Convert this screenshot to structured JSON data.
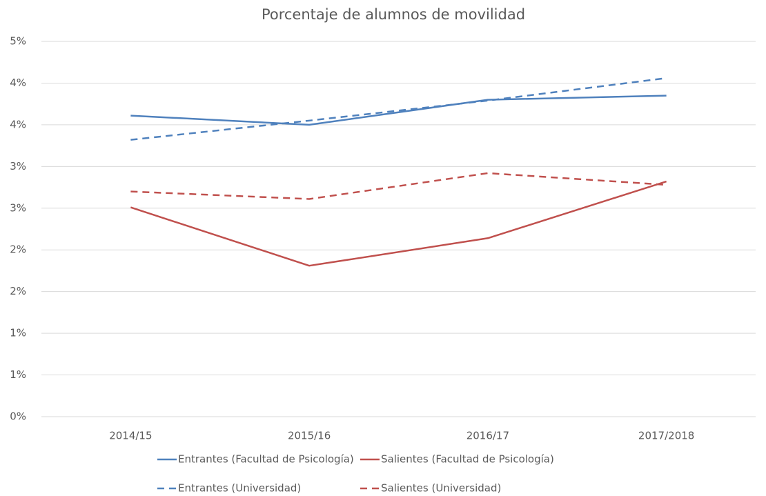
{
  "chart_data": {
    "type": "line",
    "title": "Porcentaje de alumnos de movilidad",
    "categories": [
      "2014/15",
      "2015/16",
      "2016/17",
      "2017/2018"
    ],
    "series": [
      {
        "name": "Entrantes (Facultad de Psicología)",
        "color": "#4f81bd",
        "dashed": false,
        "values": [
          3.61,
          3.5,
          3.8,
          3.85
        ]
      },
      {
        "name": "Salientes (Facultad de Psicología)",
        "color": "#c0504d",
        "dashed": false,
        "values": [
          2.51,
          1.81,
          2.14,
          2.82
        ]
      },
      {
        "name": "Entrantes (Universidad)",
        "color": "#4f81bd",
        "dashed": true,
        "values": [
          3.32,
          3.55,
          3.79,
          4.06
        ]
      },
      {
        "name": "Salientes (Universidad)",
        "color": "#c0504d",
        "dashed": true,
        "values": [
          2.7,
          2.61,
          2.92,
          2.78
        ]
      }
    ],
    "ylim": [
      0,
      4.5
    ],
    "yticks": [
      {
        "value": 0,
        "label": "0%"
      },
      {
        "value": 0.5,
        "label": "1%"
      },
      {
        "value": 1,
        "label": "1%"
      },
      {
        "value": 1.5,
        "label": "2%"
      },
      {
        "value": 2,
        "label": "2%"
      },
      {
        "value": 2.5,
        "label": "3%"
      },
      {
        "value": 3,
        "label": "3%"
      },
      {
        "value": 3.5,
        "label": "4%"
      },
      {
        "value": 4,
        "label": "4%"
      },
      {
        "value": 4.5,
        "label": "5%"
      }
    ],
    "grid": true
  }
}
